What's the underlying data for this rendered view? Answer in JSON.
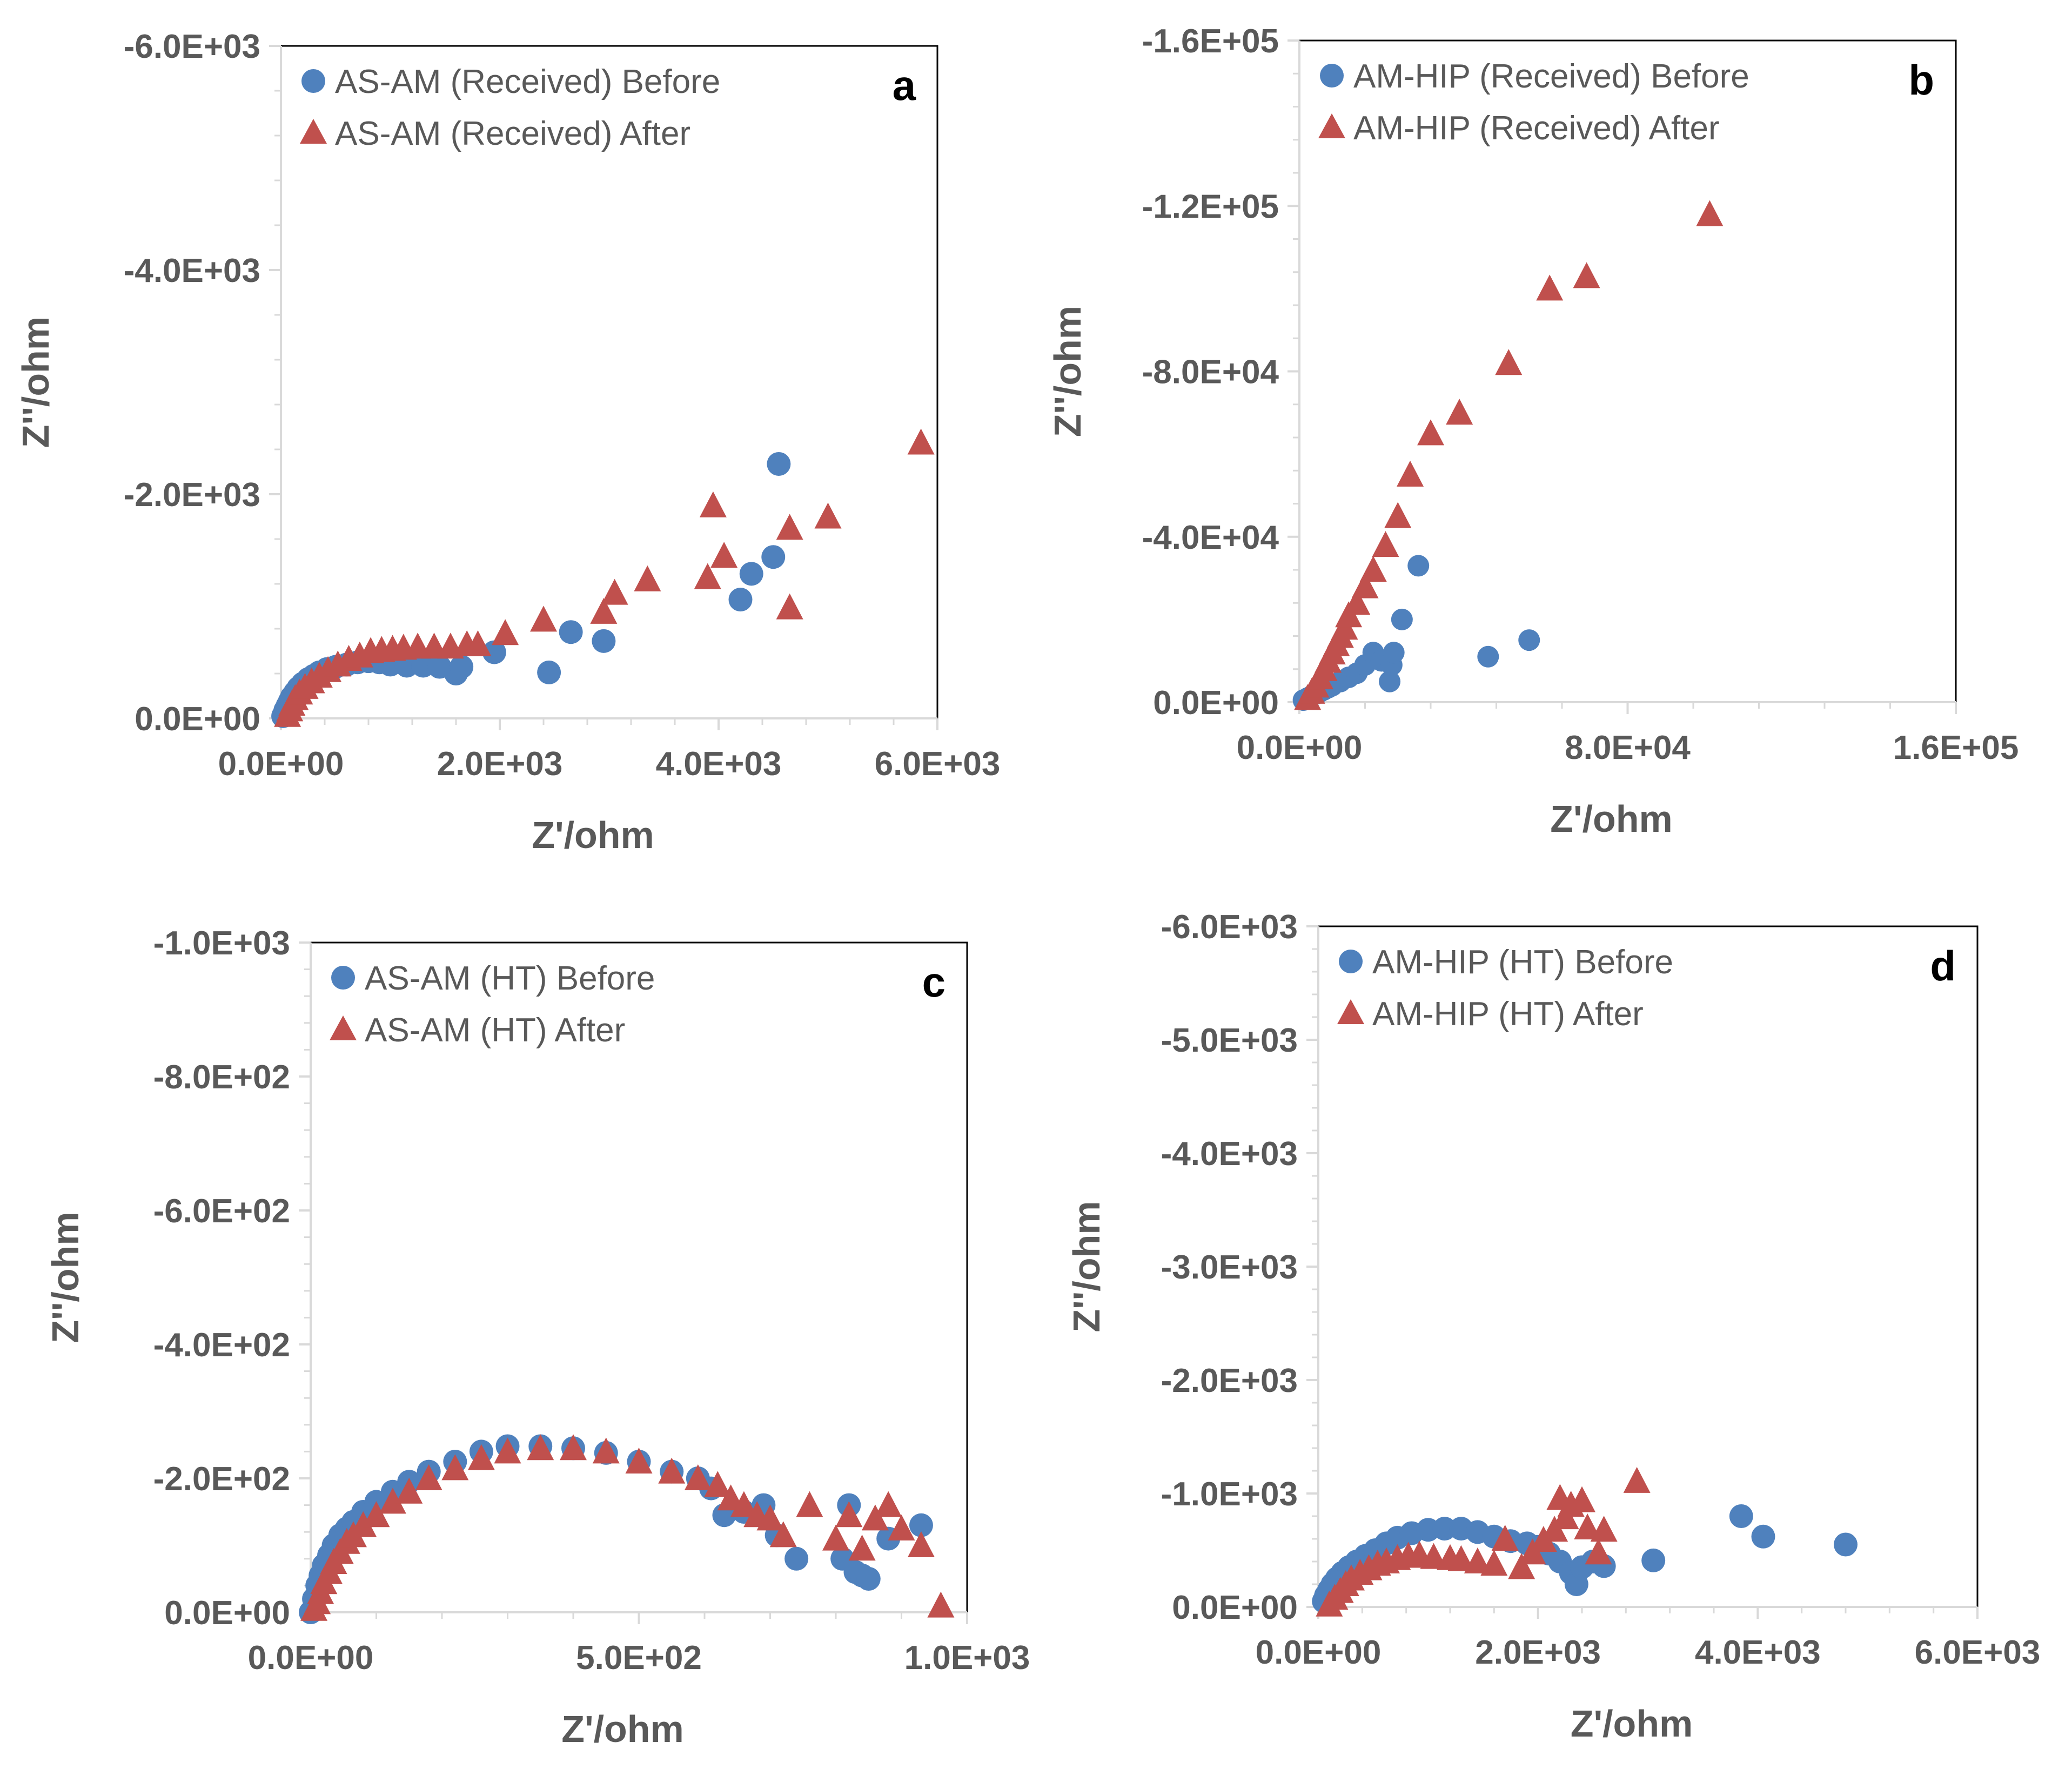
{
  "colors": {
    "before": "#4f81bd",
    "after": "#c0504d",
    "axis": "#000000",
    "tick_text": "#595959",
    "grid": "#d9d9d9"
  },
  "chart_data": [
    {
      "id": "a",
      "type": "scatter",
      "panel_label": "a",
      "xlabel": "Z'/ohm",
      "ylabel": "Z''/ohm",
      "xlim": [
        0,
        6000
      ],
      "ylim": [
        0,
        -6000
      ],
      "xticks": [
        0,
        2000,
        4000,
        6000
      ],
      "yticks": [
        0,
        -2000,
        -4000,
        -6000
      ],
      "xtick_labels": [
        "0.0E+00",
        "2.0E+03",
        "4.0E+03",
        "6.0E+03"
      ],
      "ytick_labels": [
        "0.0E+00",
        "-2.0E+03",
        "-4.0E+03",
        "-6.0E+03"
      ],
      "legend": "top-left",
      "series": [
        {
          "name": "AS-AM (Received) Before",
          "marker": "circle",
          "x": [
            20,
            40,
            60,
            80,
            100,
            130,
            160,
            200,
            250,
            300,
            350,
            420,
            500,
            600,
            700,
            800,
            900,
            1000,
            1150,
            1300,
            1450,
            1600,
            1650,
            1950,
            2450,
            2650,
            2950,
            4200,
            4300,
            4500,
            4550
          ],
          "y": [
            -20,
            -70,
            -110,
            -150,
            -190,
            -230,
            -270,
            -310,
            -350,
            -380,
            -410,
            -440,
            -460,
            -480,
            -500,
            -510,
            -500,
            -480,
            -470,
            -470,
            -460,
            -400,
            -460,
            -590,
            -410,
            -770,
            -690,
            -1060,
            -1290,
            -1440,
            -2270
          ]
        },
        {
          "name": "AS-AM (Received) After",
          "marker": "triangle",
          "x": [
            60,
            80,
            100,
            130,
            170,
            220,
            280,
            350,
            430,
            520,
            620,
            720,
            820,
            920,
            1020,
            1120,
            1250,
            1400,
            1550,
            1700,
            1800,
            2050,
            2400,
            2950,
            3050,
            3350,
            3900,
            3950,
            4050,
            4650,
            4650,
            5000,
            5850
          ],
          "y": [
            -30,
            -80,
            -130,
            -180,
            -230,
            -280,
            -330,
            -380,
            -430,
            -480,
            -530,
            -560,
            -600,
            -610,
            -620,
            -630,
            -640,
            -640,
            -640,
            -660,
            -660,
            -760,
            -880,
            -950,
            -1120,
            -1240,
            -1260,
            -1900,
            -1450,
            -990,
            -1700,
            -1800,
            -2460
          ]
        }
      ]
    },
    {
      "id": "b",
      "type": "scatter",
      "panel_label": "b",
      "xlabel": "Z'/ohm",
      "ylabel": "Z''/ohm",
      "xlim": [
        0,
        160000
      ],
      "ylim": [
        0,
        -160000
      ],
      "xticks": [
        0,
        80000,
        160000
      ],
      "yticks": [
        0,
        -40000,
        -80000,
        -120000,
        -160000
      ],
      "xtick_labels": [
        "0.0E+00",
        "8.0E+04",
        "1.6E+05"
      ],
      "ytick_labels": [
        "0.0E+00",
        "-4.0E+04",
        "-8.0E+04",
        "-1.2E+05",
        "-1.6E+05"
      ],
      "legend": "top-left",
      "series": [
        {
          "name": "AM-HIP (Received) Before",
          "marker": "circle",
          "x": [
            1000,
            2000,
            3000,
            4000,
            5000,
            6000,
            7000,
            8000,
            10000,
            12000,
            14000,
            16000,
            18000,
            20000,
            22000,
            22500,
            23000,
            25000,
            29000,
            46000,
            56000
          ],
          "y": [
            -500,
            -1000,
            -1500,
            -2000,
            -2500,
            -3000,
            -3500,
            -4000,
            -5000,
            -6000,
            -7000,
            -9000,
            -12000,
            -10000,
            -5000,
            -9000,
            -12000,
            -20000,
            -33000,
            -11000,
            -15000
          ],
          "marker_size": "small"
        },
        {
          "name": "AM-HIP (Received) After",
          "marker": "triangle",
          "x": [
            2000,
            3000,
            4000,
            5000,
            6000,
            7000,
            8000,
            9000,
            10000,
            11000,
            12000,
            14000,
            16000,
            18000,
            21000,
            24000,
            27000,
            32000,
            39000,
            51000,
            61000,
            70000,
            100000
          ],
          "y": [
            -1000,
            -2500,
            -4000,
            -6000,
            -8000,
            -10000,
            -12000,
            -14000,
            -16000,
            -18000,
            -21000,
            -24000,
            -28000,
            -32000,
            -38000,
            -45000,
            -55000,
            -65000,
            -70000,
            -82000,
            -100000,
            -103000,
            -118000
          ]
        }
      ]
    },
    {
      "id": "c",
      "type": "scatter",
      "panel_label": "c",
      "xlabel": "Z'/ohm",
      "ylabel": "Z''/ohm",
      "xlim": [
        0,
        1000
      ],
      "ylim": [
        0,
        -1000
      ],
      "xticks": [
        0,
        500,
        1000
      ],
      "yticks": [
        0,
        -200,
        -400,
        -600,
        -800,
        -1000
      ],
      "xtick_labels": [
        "0.0E+00",
        "5.0E+02",
        "1.0E+03"
      ],
      "ytick_labels": [
        "0.0E+00",
        "-2.0E+02",
        "-4.0E+02",
        "-6.0E+02",
        "-8.0E+02",
        "-1.0E+03"
      ],
      "legend": "top-left",
      "series": [
        {
          "name": "AS-AM (HT) Before",
          "marker": "circle",
          "x": [
            0,
            5,
            10,
            15,
            20,
            28,
            35,
            45,
            55,
            65,
            80,
            100,
            125,
            150,
            180,
            220,
            260,
            300,
            350,
            400,
            450,
            500,
            550,
            590,
            610,
            630,
            660,
            690,
            710,
            740,
            810,
            820,
            830,
            840,
            850,
            880,
            930
          ],
          "y": [
            0,
            -20,
            -40,
            -55,
            -70,
            -85,
            -100,
            -115,
            -125,
            -135,
            -150,
            -165,
            -180,
            -195,
            -210,
            -225,
            -240,
            -248,
            -248,
            -245,
            -238,
            -225,
            -210,
            -200,
            -185,
            -145,
            -150,
            -160,
            -115,
            -80,
            -80,
            -160,
            -60,
            -55,
            -50,
            -110,
            -130
          ]
        },
        {
          "name": "AS-AM (HT) After",
          "marker": "triangle",
          "x": [
            5,
            10,
            15,
            20,
            28,
            35,
            45,
            55,
            65,
            80,
            100,
            125,
            150,
            180,
            220,
            260,
            300,
            350,
            400,
            450,
            500,
            550,
            590,
            620,
            640,
            660,
            680,
            700,
            720,
            760,
            800,
            820,
            840,
            860,
            880,
            900,
            930,
            960
          ],
          "y": [
            -5,
            -15,
            -30,
            -45,
            -60,
            -75,
            -90,
            -105,
            -115,
            -130,
            -145,
            -165,
            -180,
            -200,
            -215,
            -230,
            -240,
            -245,
            -245,
            -240,
            -225,
            -210,
            -200,
            -190,
            -170,
            -160,
            -145,
            -140,
            -115,
            -160,
            -110,
            -145,
            -95,
            -140,
            -160,
            -125,
            -100,
            -10
          ]
        }
      ]
    },
    {
      "id": "d",
      "type": "scatter",
      "panel_label": "d",
      "xlabel": "Z'/ohm",
      "ylabel": "Z''/ohm",
      "xlim": [
        0,
        6000
      ],
      "ylim": [
        0,
        -6000
      ],
      "xticks": [
        0,
        2000,
        4000,
        6000
      ],
      "yticks": [
        0,
        -1000,
        -2000,
        -3000,
        -4000,
        -5000,
        -6000
      ],
      "xtick_labels": [
        "0.0E+00",
        "2.0E+03",
        "4.0E+03",
        "6.0E+03"
      ],
      "ytick_labels": [
        "0.0E+00",
        "-1.0E+03",
        "-2.0E+03",
        "-3.0E+03",
        "-4.0E+03",
        "-5.0E+03",
        "-6.0E+03"
      ],
      "legend": "top-left",
      "series": [
        {
          "name": "AM-HIP (HT) Before",
          "marker": "circle",
          "x": [
            50,
            70,
            100,
            130,
            170,
            220,
            280,
            350,
            430,
            520,
            620,
            720,
            850,
            1000,
            1150,
            1300,
            1450,
            1600,
            1750,
            1900,
            2000,
            2100,
            2200,
            2300,
            2350,
            2400,
            2500,
            2600,
            3050,
            3850,
            4050,
            4800
          ],
          "y": [
            -50,
            -100,
            -150,
            -200,
            -250,
            -300,
            -350,
            -400,
            -450,
            -500,
            -560,
            -610,
            -650,
            -680,
            -690,
            -690,
            -660,
            -620,
            -580,
            -560,
            -530,
            -470,
            -400,
            -300,
            -200,
            -350,
            -400,
            -360,
            -410,
            -800,
            -620,
            -550
          ]
        },
        {
          "name": "AM-HIP (HT) After",
          "marker": "triangle",
          "x": [
            100,
            150,
            200,
            250,
            300,
            380,
            460,
            540,
            620,
            720,
            820,
            920,
            1050,
            1200,
            1300,
            1450,
            1600,
            1700,
            1850,
            1950,
            2050,
            2150,
            2200,
            2250,
            2300,
            2400,
            2450,
            2550,
            2600,
            2900
          ],
          "y": [
            -20,
            -80,
            -140,
            -200,
            -250,
            -300,
            -340,
            -380,
            -400,
            -430,
            -450,
            -460,
            -440,
            -430,
            -420,
            -400,
            -380,
            -600,
            -350,
            -480,
            -590,
            -680,
            -960,
            -790,
            -900,
            -940,
            -700,
            -480,
            -680,
            -1110
          ]
        }
      ]
    }
  ]
}
